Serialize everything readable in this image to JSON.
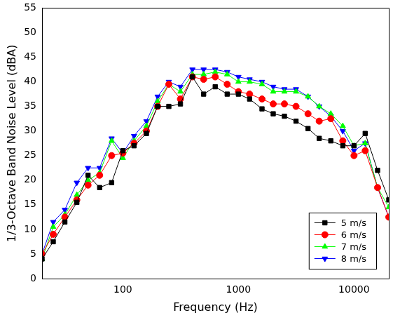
{
  "chart_data": {
    "type": "line",
    "x_label": "Frequency (Hz)",
    "y_label": "1/3-Octave Band Noise Level (dBA)",
    "log": "x",
    "grid": false,
    "legend": "lower right",
    "xlim": [
      20,
      20000
    ],
    "xticks": [
      100,
      1000,
      10000
    ],
    "ylim": [
      0,
      55
    ],
    "yticks": [
      0,
      5,
      10,
      15,
      20,
      25,
      30,
      35,
      40,
      45,
      50,
      55
    ],
    "x": [
      20,
      25,
      31.5,
      40,
      50,
      63,
      80,
      100,
      125,
      160,
      200,
      250,
      315,
      400,
      500,
      630,
      800,
      1000,
      1250,
      1600,
      2000,
      2500,
      3150,
      4000,
      5000,
      6300,
      8000,
      10000,
      12500,
      16000,
      20000
    ],
    "series": [
      {
        "name": "5 m/s",
        "color": "#000000",
        "marker": "square",
        "line_style": "solid",
        "values": [
          4,
          7.5,
          11.5,
          15.5,
          21,
          18.5,
          19.5,
          26,
          27,
          29.5,
          35,
          35,
          35.5,
          41,
          37.5,
          39,
          37.5,
          37.5,
          36.5,
          34.5,
          33.5,
          33,
          32,
          30.5,
          28.5,
          28,
          27,
          27,
          29.5,
          22,
          16
        ]
      },
      {
        "name": "6 m/s",
        "color": "#ff0000",
        "marker": "circle",
        "line_style": "solid",
        "values": [
          5,
          9,
          12.5,
          16,
          19,
          21,
          25,
          25.5,
          27.5,
          30,
          35,
          39.5,
          36.5,
          41,
          40.5,
          41,
          39.5,
          38,
          37.5,
          36.5,
          35.5,
          35.5,
          35,
          33.5,
          32,
          32.5,
          28,
          25,
          26,
          18.5,
          12.5
        ]
      },
      {
        "name": "7 m/s",
        "color": "#00ff00",
        "marker": "triangle-up",
        "line_style": "solid",
        "values": [
          4,
          10.5,
          13,
          17,
          20,
          21.5,
          28,
          24.5,
          28,
          31,
          36,
          39.5,
          38,
          41.5,
          41.5,
          42,
          41.5,
          40,
          40,
          39.5,
          38,
          38,
          38,
          37,
          35,
          33.5,
          31,
          27,
          27.5,
          18.5,
          14.5
        ]
      },
      {
        "name": "8 m/s",
        "color": "#0000ff",
        "marker": "triangle-down",
        "line_style": "solid",
        "values": [
          5,
          11.5,
          14,
          19.5,
          22.5,
          22.5,
          28.5,
          25.5,
          29,
          32,
          37,
          40,
          39,
          42.5,
          42.5,
          42.5,
          42,
          41,
          40.5,
          40,
          39,
          38.5,
          38.5,
          37,
          35,
          33,
          30,
          26,
          27.5,
          18.5,
          12.5
        ]
      }
    ]
  }
}
